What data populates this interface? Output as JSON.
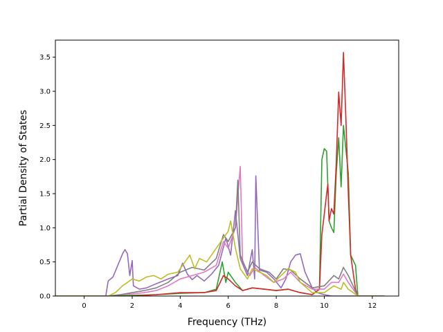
{
  "chart_data": {
    "type": "line",
    "title": "",
    "xlabel": "Frequency (THz)",
    "ylabel": "Partial Density of States",
    "xlim": [
      -1.2,
      13.1
    ],
    "ylim": [
      0.0,
      3.75
    ],
    "xticks": [
      0,
      2,
      4,
      6,
      8,
      10,
      12
    ],
    "yticks": [
      0.0,
      0.5,
      1.0,
      1.5,
      2.0,
      2.5,
      3.0,
      3.5
    ],
    "xtick_labels": [
      "0",
      "2",
      "4",
      "6",
      "8",
      "10",
      "12"
    ],
    "ytick_labels": [
      "0.0",
      "0.5",
      "1.0",
      "1.5",
      "2.0",
      "2.5",
      "3.0",
      "3.5"
    ],
    "grid": false,
    "legend": "none",
    "series": [
      {
        "color": "#9467bd",
        "points": [
          [
            -1.2,
            0
          ],
          [
            0.9,
            0
          ],
          [
            1.0,
            0.22
          ],
          [
            1.2,
            0.28
          ],
          [
            1.4,
            0.45
          ],
          [
            1.6,
            0.62
          ],
          [
            1.7,
            0.68
          ],
          [
            1.8,
            0.62
          ],
          [
            1.9,
            0.3
          ],
          [
            2.0,
            0.52
          ],
          [
            2.05,
            0.15
          ],
          [
            2.3,
            0.1
          ],
          [
            2.6,
            0.12
          ],
          [
            3.0,
            0.18
          ],
          [
            3.5,
            0.25
          ],
          [
            3.9,
            0.3
          ],
          [
            4.1,
            0.48
          ],
          [
            4.3,
            0.32
          ],
          [
            4.5,
            0.24
          ],
          [
            4.7,
            0.3
          ],
          [
            5.0,
            0.22
          ],
          [
            5.3,
            0.32
          ],
          [
            5.6,
            0.45
          ],
          [
            5.9,
            0.85
          ],
          [
            6.1,
            0.6
          ],
          [
            6.3,
            1.25
          ],
          [
            6.5,
            0.55
          ],
          [
            6.8,
            0.3
          ],
          [
            7.0,
            0.68
          ],
          [
            7.1,
            0.25
          ],
          [
            7.15,
            1.76
          ],
          [
            7.3,
            0.38
          ],
          [
            7.6,
            0.35
          ],
          [
            7.9,
            0.25
          ],
          [
            8.2,
            0.12
          ],
          [
            8.4,
            0.25
          ],
          [
            8.6,
            0.5
          ],
          [
            8.8,
            0.6
          ],
          [
            9.0,
            0.62
          ],
          [
            9.2,
            0.35
          ],
          [
            9.5,
            0.12
          ],
          [
            9.7,
            0.05
          ],
          [
            10.0,
            0.02
          ],
          [
            10.3,
            0.0
          ],
          [
            12.5,
            0.0
          ]
        ]
      },
      {
        "color": "#2ca02c",
        "points": [
          [
            -1.2,
            0
          ],
          [
            1.0,
            0
          ],
          [
            2.0,
            0.01
          ],
          [
            3.0,
            0.02
          ],
          [
            4.0,
            0.04
          ],
          [
            5.0,
            0.05
          ],
          [
            5.5,
            0.1
          ],
          [
            5.75,
            0.5
          ],
          [
            5.9,
            0.2
          ],
          [
            6.0,
            0.35
          ],
          [
            6.3,
            0.2
          ],
          [
            6.6,
            0.08
          ],
          [
            7.0,
            0.12
          ],
          [
            7.5,
            0.1
          ],
          [
            8.0,
            0.08
          ],
          [
            8.5,
            0.1
          ],
          [
            9.0,
            0.05
          ],
          [
            9.5,
            0.02
          ],
          [
            9.8,
            0.1
          ],
          [
            9.9,
            2.0
          ],
          [
            10.0,
            2.16
          ],
          [
            10.1,
            2.12
          ],
          [
            10.2,
            1.1
          ],
          [
            10.3,
            1.0
          ],
          [
            10.4,
            0.93
          ],
          [
            10.5,
            1.8
          ],
          [
            10.6,
            2.32
          ],
          [
            10.7,
            1.6
          ],
          [
            10.8,
            2.5
          ],
          [
            11.0,
            1.8
          ],
          [
            11.1,
            0.6
          ],
          [
            11.3,
            0.45
          ],
          [
            11.4,
            0.0
          ],
          [
            12.5,
            0.0
          ]
        ]
      },
      {
        "color": "#d62728",
        "points": [
          [
            -1.2,
            0
          ],
          [
            1.0,
            0
          ],
          [
            2.0,
            0.0
          ],
          [
            3.0,
            0.02
          ],
          [
            4.0,
            0.05
          ],
          [
            5.0,
            0.05
          ],
          [
            5.5,
            0.08
          ],
          [
            5.8,
            0.3
          ],
          [
            6.0,
            0.25
          ],
          [
            6.3,
            0.15
          ],
          [
            6.6,
            0.08
          ],
          [
            7.0,
            0.12
          ],
          [
            7.5,
            0.1
          ],
          [
            8.0,
            0.08
          ],
          [
            8.5,
            0.1
          ],
          [
            9.0,
            0.05
          ],
          [
            9.5,
            0.02
          ],
          [
            9.8,
            0.1
          ],
          [
            9.9,
            0.9
          ],
          [
            10.0,
            1.2
          ],
          [
            10.1,
            1.5
          ],
          [
            10.15,
            1.64
          ],
          [
            10.2,
            1.1
          ],
          [
            10.3,
            1.28
          ],
          [
            10.4,
            1.2
          ],
          [
            10.5,
            1.95
          ],
          [
            10.6,
            2.99
          ],
          [
            10.7,
            2.5
          ],
          [
            10.8,
            3.57
          ],
          [
            10.9,
            2.6
          ],
          [
            11.0,
            1.5
          ],
          [
            11.1,
            0.6
          ],
          [
            11.3,
            0.1
          ],
          [
            11.4,
            0.0
          ],
          [
            12.5,
            0.0
          ]
        ]
      },
      {
        "color": "#e377c2",
        "points": [
          [
            -1.2,
            0
          ],
          [
            1.0,
            0
          ],
          [
            1.5,
            0.02
          ],
          [
            2.0,
            0.03
          ],
          [
            2.5,
            0.05
          ],
          [
            3.0,
            0.08
          ],
          [
            3.5,
            0.15
          ],
          [
            4.0,
            0.25
          ],
          [
            4.5,
            0.3
          ],
          [
            5.0,
            0.35
          ],
          [
            5.5,
            0.45
          ],
          [
            5.8,
            0.8
          ],
          [
            6.0,
            0.7
          ],
          [
            6.3,
            1.0
          ],
          [
            6.5,
            1.9
          ],
          [
            6.6,
            0.5
          ],
          [
            6.9,
            0.3
          ],
          [
            7.1,
            0.42
          ],
          [
            7.5,
            0.3
          ],
          [
            7.9,
            0.2
          ],
          [
            8.3,
            0.25
          ],
          [
            8.6,
            0.35
          ],
          [
            9.0,
            0.2
          ],
          [
            9.5,
            0.1
          ],
          [
            10.0,
            0.1
          ],
          [
            10.3,
            0.2
          ],
          [
            10.6,
            0.2
          ],
          [
            10.8,
            0.32
          ],
          [
            11.0,
            0.2
          ],
          [
            11.4,
            0.0
          ],
          [
            12.5,
            0.0
          ]
        ]
      },
      {
        "color": "#7f7f7f",
        "points": [
          [
            -1.2,
            0
          ],
          [
            1.0,
            0
          ],
          [
            1.5,
            0.02
          ],
          [
            2.0,
            0.05
          ],
          [
            2.5,
            0.08
          ],
          [
            3.0,
            0.12
          ],
          [
            3.5,
            0.2
          ],
          [
            4.0,
            0.35
          ],
          [
            4.5,
            0.42
          ],
          [
            5.0,
            0.38
          ],
          [
            5.5,
            0.55
          ],
          [
            5.8,
            0.9
          ],
          [
            6.0,
            0.8
          ],
          [
            6.3,
            1.0
          ],
          [
            6.4,
            1.7
          ],
          [
            6.5,
            0.6
          ],
          [
            6.8,
            0.35
          ],
          [
            7.0,
            0.5
          ],
          [
            7.3,
            0.4
          ],
          [
            7.7,
            0.35
          ],
          [
            8.0,
            0.25
          ],
          [
            8.3,
            0.4
          ],
          [
            8.6,
            0.38
          ],
          [
            9.0,
            0.25
          ],
          [
            9.5,
            0.12
          ],
          [
            10.0,
            0.15
          ],
          [
            10.4,
            0.3
          ],
          [
            10.6,
            0.25
          ],
          [
            10.8,
            0.42
          ],
          [
            11.0,
            0.3
          ],
          [
            11.4,
            0.0
          ],
          [
            12.5,
            0.0
          ]
        ]
      },
      {
        "color": "#bcbd22",
        "points": [
          [
            -1.2,
            0
          ],
          [
            1.0,
            0
          ],
          [
            1.3,
            0.05
          ],
          [
            1.6,
            0.15
          ],
          [
            1.8,
            0.2
          ],
          [
            2.0,
            0.25
          ],
          [
            2.3,
            0.22
          ],
          [
            2.6,
            0.28
          ],
          [
            2.9,
            0.3
          ],
          [
            3.2,
            0.25
          ],
          [
            3.5,
            0.32
          ],
          [
            3.9,
            0.35
          ],
          [
            4.1,
            0.45
          ],
          [
            4.4,
            0.6
          ],
          [
            4.6,
            0.4
          ],
          [
            4.8,
            0.55
          ],
          [
            5.1,
            0.5
          ],
          [
            5.4,
            0.65
          ],
          [
            5.7,
            0.8
          ],
          [
            6.0,
            0.95
          ],
          [
            6.1,
            1.1
          ],
          [
            6.3,
            0.7
          ],
          [
            6.5,
            0.4
          ],
          [
            6.8,
            0.25
          ],
          [
            7.0,
            0.4
          ],
          [
            7.3,
            0.35
          ],
          [
            7.6,
            0.3
          ],
          [
            7.9,
            0.2
          ],
          [
            8.2,
            0.3
          ],
          [
            8.5,
            0.4
          ],
          [
            8.8,
            0.35
          ],
          [
            9.0,
            0.2
          ],
          [
            9.5,
            0.05
          ],
          [
            10.0,
            0.05
          ],
          [
            10.4,
            0.15
          ],
          [
            10.7,
            0.1
          ],
          [
            10.8,
            0.2
          ],
          [
            11.0,
            0.1
          ],
          [
            11.4,
            0.0
          ],
          [
            12.5,
            0.0
          ]
        ]
      }
    ]
  }
}
